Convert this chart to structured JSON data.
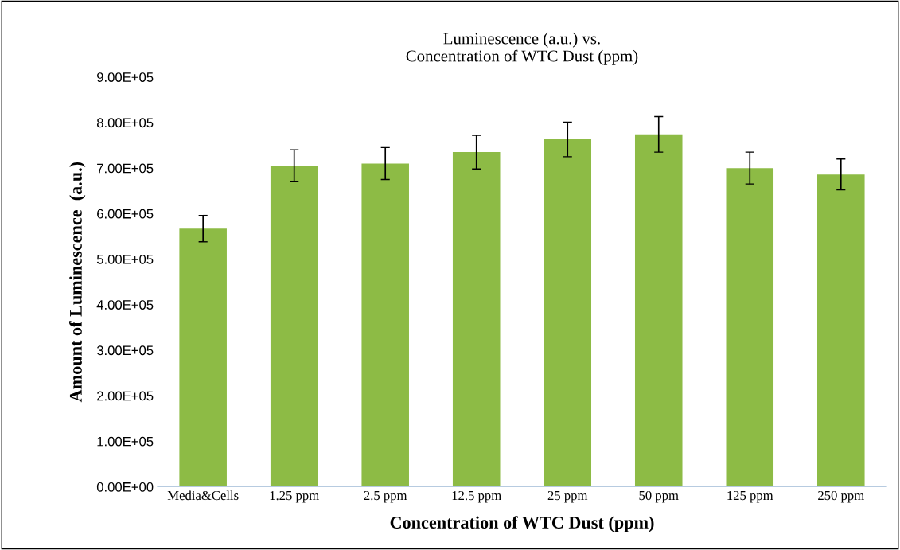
{
  "chart_data": {
    "type": "bar",
    "title": "Luminescence (a.u.) vs.\nConcentration of WTC Dust (ppm)",
    "xlabel": "Concentration of WTC Dust (ppm)",
    "ylabel": "Amount of Luminescence  (a.u.)",
    "categories": [
      "Media&Cells",
      "1.25 ppm",
      "2.5 ppm",
      "12.5 ppm",
      "25 ppm",
      "50 ppm",
      "125 ppm",
      "250 ppm"
    ],
    "values": [
      567000,
      705000,
      710000,
      735000,
      763000,
      774000,
      700000,
      686000
    ],
    "errors": [
      29000,
      35000,
      35000,
      37000,
      38000,
      39000,
      35000,
      34000
    ],
    "color": "#8dbb45",
    "ylim": [
      0,
      900000
    ],
    "yticks": [
      {
        "value": 0,
        "label": "0.00E+00"
      },
      {
        "value": 100000,
        "label": "1.00E+05"
      },
      {
        "value": 200000,
        "label": "2.00E+05"
      },
      {
        "value": 300000,
        "label": "3.00E+05"
      },
      {
        "value": 400000,
        "label": "4.00E+05"
      },
      {
        "value": 500000,
        "label": "5.00E+05"
      },
      {
        "value": 600000,
        "label": "6.00E+05"
      },
      {
        "value": 700000,
        "label": "7.00E+05"
      },
      {
        "value": 800000,
        "label": "8.00E+05"
      },
      {
        "value": 900000,
        "label": "9.00E+05"
      }
    ],
    "grid": false
  }
}
